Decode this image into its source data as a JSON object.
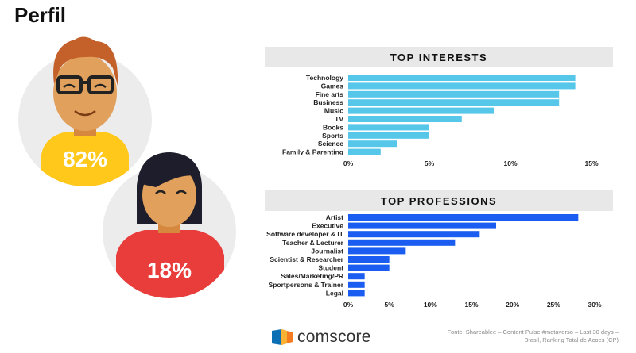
{
  "page": {
    "title": "Perfil",
    "male_pct": "82%",
    "female_pct": "18%",
    "brand": "comscore",
    "source_line1": "Fonte: Shareablee – Content Pulse #metaverso – Last 30 days –",
    "source_line2": "Brasil, Ranking Total de Acoes (CP)"
  },
  "colors": {
    "interests_bar": "#56c6e9",
    "professions_bar": "#1a5df0",
    "header_bg": "#e8e8e8",
    "circle_bg": "#ececec",
    "male_shirt": "#ffc81a",
    "female_shirt": "#e83d3b"
  },
  "chart_data": [
    {
      "type": "bar",
      "orientation": "horizontal",
      "title": "TOP INTERESTS",
      "categories": [
        "Technology",
        "Games",
        "Fine arts",
        "Business",
        "Music",
        "TV",
        "Books",
        "Sports",
        "Science",
        "Family & Parenting"
      ],
      "values": [
        14,
        14,
        13,
        13,
        9,
        7,
        5,
        5,
        3,
        2
      ],
      "xlim": [
        0,
        15
      ],
      "ticks": [
        "0%",
        "5%",
        "10%",
        "15%"
      ],
      "tick_values": [
        0,
        5,
        10,
        15
      ],
      "grid": false,
      "legend": "none"
    },
    {
      "type": "bar",
      "orientation": "horizontal",
      "title": "TOP PROFESSIONS",
      "categories": [
        "Artist",
        "Executive",
        "Software developer & IT",
        "Teacher & Lecturer",
        "Journalist",
        "Scientist & Researcher",
        "Student",
        "Sales/Marketing/PR",
        "Sportpersons & Trainer",
        "Legal"
      ],
      "values": [
        28,
        18,
        16,
        13,
        7,
        5,
        5,
        2,
        2,
        2
      ],
      "xlim": [
        0,
        30
      ],
      "ticks": [
        "0%",
        "5%",
        "10%",
        "15%",
        "20%",
        "25%",
        "30%"
      ],
      "tick_values": [
        0,
        5,
        10,
        15,
        20,
        25,
        30
      ],
      "grid": false,
      "legend": "none"
    }
  ]
}
